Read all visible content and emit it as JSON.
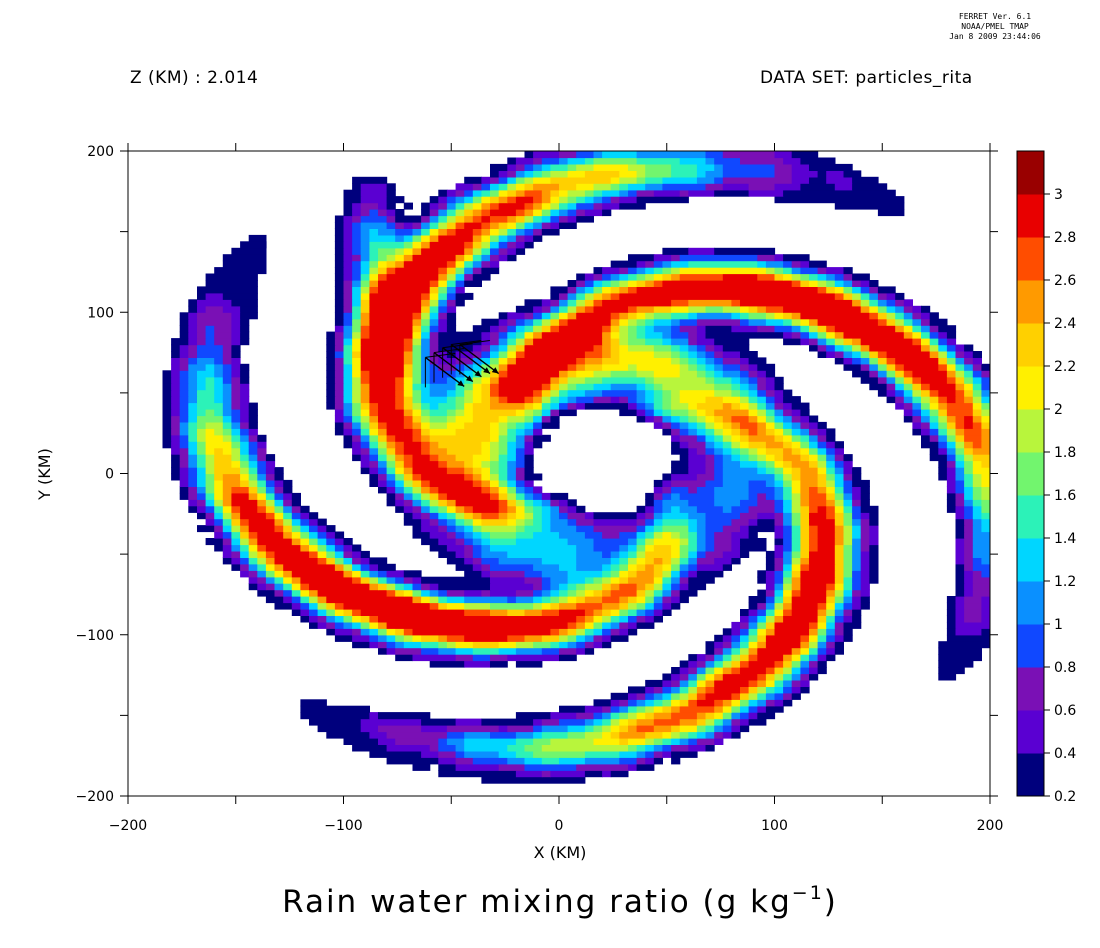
{
  "stamp": {
    "line1": "FERRET Ver. 6.1",
    "line2": "NOAA/PMEL TMAP",
    "line3": "Jan  8 2009 23:44:06"
  },
  "header": {
    "z_label": "Z (KM) : 2.014",
    "dataset_label": "DATA SET: particles_rita"
  },
  "chart_data": {
    "type": "heatmap",
    "title": "Rain water mixing ratio (g kg",
    "title_superscript": "−1",
    "title_close": ")",
    "xlabel": "X (KM)",
    "ylabel": "Y (KM)",
    "xlim": [
      -200,
      200
    ],
    "ylim": [
      -200,
      200
    ],
    "x_ticks": [
      -200,
      -100,
      0,
      100,
      200
    ],
    "y_ticks": [
      -200,
      -100,
      0,
      100,
      200
    ],
    "x_ticks_minor": [
      -150,
      -50,
      50,
      150
    ],
    "y_ticks_minor": [
      -150,
      -50,
      50,
      150
    ],
    "colorbar": {
      "levels": [
        0.2,
        0.4,
        0.6,
        0.8,
        1,
        1.2,
        1.4,
        1.6,
        1.8,
        2,
        2.2,
        2.4,
        2.6,
        2.8,
        3
      ],
      "colors": [
        "#00007d",
        "#5a00d2",
        "#7a10b5",
        "#1048ff",
        "#0a90ff",
        "#00d6ff",
        "#2cf2b8",
        "#72f56e",
        "#b8f53c",
        "#fff000",
        "#ffd000",
        "#ff9a00",
        "#ff4d00",
        "#e80000",
        "#990000"
      ],
      "labels": [
        "0.2",
        "0.4",
        "0.6",
        "0.8",
        "1",
        "1.2",
        "1.4",
        "1.6",
        "1.8",
        "2",
        "2.2",
        "2.4",
        "2.6",
        "2.8",
        "3"
      ]
    },
    "field": {
      "description": "hurricane rainband spiral with eye near (20, 10)",
      "eye": [
        20,
        10
      ]
    },
    "vectors": [
      {
        "x": -62,
        "y": 72,
        "u": 18,
        "v": -18
      },
      {
        "x": -58,
        "y": 75,
        "u": 18,
        "v": -18
      },
      {
        "x": -54,
        "y": 78,
        "u": 18,
        "v": -18
      },
      {
        "x": -50,
        "y": 80,
        "u": 18,
        "v": -18
      },
      {
        "x": -46,
        "y": 80,
        "u": 18,
        "v": -18
      }
    ]
  }
}
